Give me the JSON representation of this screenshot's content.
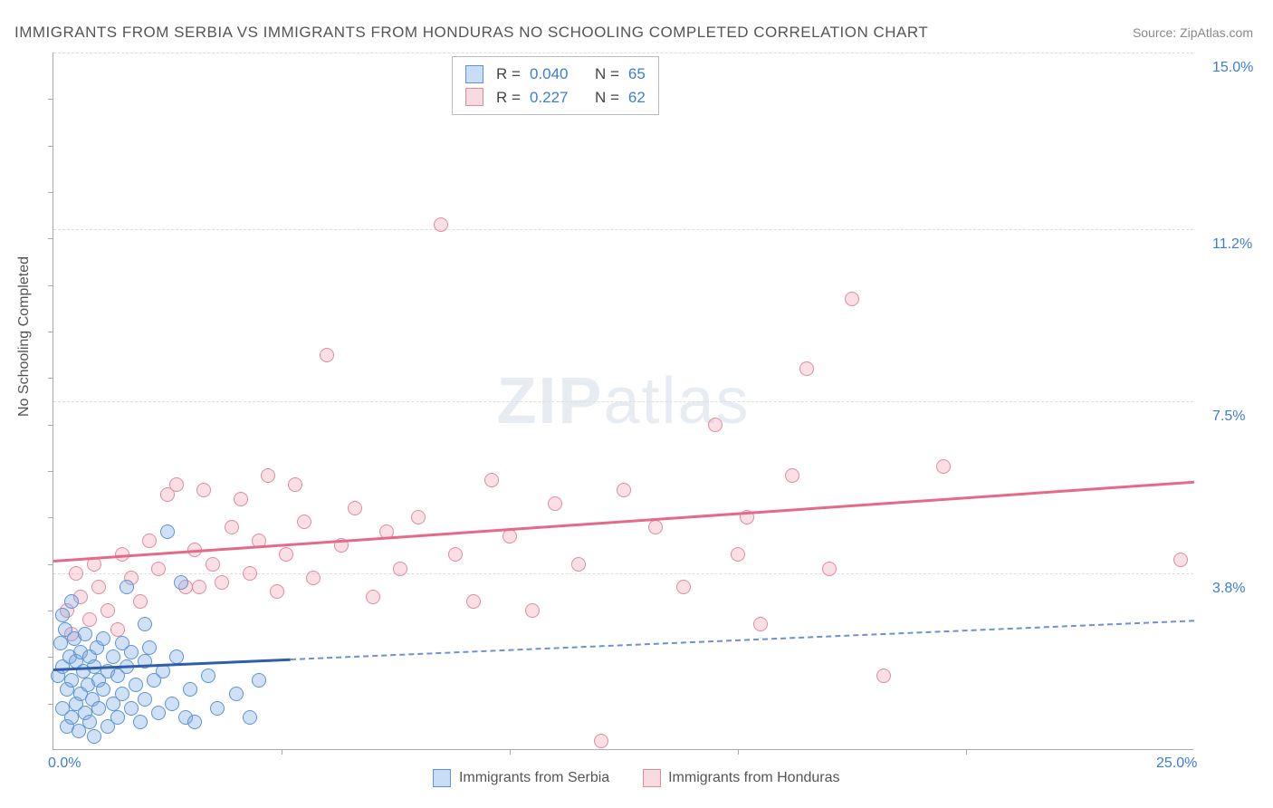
{
  "title": "IMMIGRANTS FROM SERBIA VS IMMIGRANTS FROM HONDURAS NO SCHOOLING COMPLETED CORRELATION CHART",
  "source": "Source: ZipAtlas.com",
  "y_axis_label": "No Schooling Completed",
  "watermark_bold": "ZIP",
  "watermark_thin": "atlas",
  "chart": {
    "type": "scatter",
    "xlim": [
      0,
      25
    ],
    "ylim": [
      0,
      15
    ],
    "x_tick_labels": {
      "0": "0.0%",
      "25": "25.0%"
    },
    "x_ticks_minor": [
      5,
      10,
      15,
      20
    ],
    "y_tick_labels": {
      "3.8": "3.8%",
      "7.5": "7.5%",
      "11.2": "11.2%",
      "15": "15.0%"
    },
    "y_ticks_minor_left": [
      1,
      2,
      3,
      4,
      5,
      6,
      7,
      8,
      9,
      10,
      11,
      12,
      13,
      14
    ],
    "grid_color": "#dddddd",
    "background_color": "#ffffff",
    "axis_label_color": "#555555",
    "tick_label_color": "#3b7dd8"
  },
  "legend_stats": [
    {
      "swatch": "blue",
      "r_label": "R =",
      "r_val": "0.040",
      "n_label": "N =",
      "n_val": "65"
    },
    {
      "swatch": "pink",
      "r_label": "R =",
      "r_val": "0.227",
      "n_label": "N =",
      "n_val": "62"
    }
  ],
  "bottom_legend": [
    {
      "swatch": "blue",
      "label": "Immigrants from Serbia"
    },
    {
      "swatch": "pink",
      "label": "Immigrants from Honduras"
    }
  ],
  "series": {
    "serbia": {
      "color_fill": "rgba(120,170,230,0.35)",
      "color_stroke": "#5a93d6",
      "trend_color": "#2e5fa8",
      "trend": {
        "x1": 0,
        "y1": 1.75,
        "x2_solid": 5.2,
        "x2_end": 25,
        "y2": 2.8
      },
      "points": [
        [
          0.1,
          1.6
        ],
        [
          0.15,
          2.3
        ],
        [
          0.2,
          0.9
        ],
        [
          0.2,
          1.8
        ],
        [
          0.25,
          2.6
        ],
        [
          0.3,
          0.5
        ],
        [
          0.3,
          1.3
        ],
        [
          0.35,
          2.0
        ],
        [
          0.4,
          0.7
        ],
        [
          0.4,
          1.5
        ],
        [
          0.45,
          2.4
        ],
        [
          0.5,
          1.0
        ],
        [
          0.5,
          1.9
        ],
        [
          0.55,
          0.4
        ],
        [
          0.6,
          1.2
        ],
        [
          0.6,
          2.1
        ],
        [
          0.65,
          1.7
        ],
        [
          0.7,
          0.8
        ],
        [
          0.7,
          2.5
        ],
        [
          0.75,
          1.4
        ],
        [
          0.8,
          0.6
        ],
        [
          0.8,
          2.0
        ],
        [
          0.85,
          1.1
        ],
        [
          0.9,
          1.8
        ],
        [
          0.9,
          0.3
        ],
        [
          0.95,
          2.2
        ],
        [
          1.0,
          1.5
        ],
        [
          1.0,
          0.9
        ],
        [
          1.1,
          1.3
        ],
        [
          1.1,
          2.4
        ],
        [
          1.2,
          1.7
        ],
        [
          1.2,
          0.5
        ],
        [
          1.3,
          2.0
        ],
        [
          1.3,
          1.0
        ],
        [
          1.4,
          1.6
        ],
        [
          1.4,
          0.7
        ],
        [
          1.5,
          2.3
        ],
        [
          1.5,
          1.2
        ],
        [
          1.6,
          1.8
        ],
        [
          1.7,
          0.9
        ],
        [
          1.7,
          2.1
        ],
        [
          1.8,
          1.4
        ],
        [
          1.9,
          0.6
        ],
        [
          2.0,
          1.9
        ],
        [
          2.0,
          1.1
        ],
        [
          2.1,
          2.2
        ],
        [
          2.2,
          1.5
        ],
        [
          2.3,
          0.8
        ],
        [
          2.4,
          1.7
        ],
        [
          2.5,
          4.7
        ],
        [
          2.6,
          1.0
        ],
        [
          2.7,
          2.0
        ],
        [
          2.8,
          3.6
        ],
        [
          2.9,
          0.7
        ],
        [
          3.0,
          1.3
        ],
        [
          3.1,
          0.6
        ],
        [
          3.4,
          1.6
        ],
        [
          3.6,
          0.9
        ],
        [
          4.0,
          1.2
        ],
        [
          4.3,
          0.7
        ],
        [
          4.5,
          1.5
        ],
        [
          1.6,
          3.5
        ],
        [
          0.4,
          3.2
        ],
        [
          0.2,
          2.9
        ],
        [
          2.0,
          2.7
        ]
      ]
    },
    "honduras": {
      "color_fill": "rgba(240,150,170,0.30)",
      "color_stroke": "#e08aa0",
      "trend_color": "#e56a8a",
      "trend": {
        "x1": 0,
        "y1": 4.1,
        "x2": 25,
        "y2": 5.8
      },
      "points": [
        [
          0.3,
          3.0
        ],
        [
          0.4,
          2.5
        ],
        [
          0.5,
          3.8
        ],
        [
          0.6,
          3.3
        ],
        [
          0.8,
          2.8
        ],
        [
          0.9,
          4.0
        ],
        [
          1.0,
          3.5
        ],
        [
          1.2,
          3.0
        ],
        [
          1.4,
          2.6
        ],
        [
          1.5,
          4.2
        ],
        [
          1.7,
          3.7
        ],
        [
          1.9,
          3.2
        ],
        [
          2.1,
          4.5
        ],
        [
          2.3,
          3.9
        ],
        [
          2.5,
          5.5
        ],
        [
          2.7,
          5.7
        ],
        [
          2.9,
          3.5
        ],
        [
          3.1,
          4.3
        ],
        [
          3.3,
          5.6
        ],
        [
          3.5,
          4.0
        ],
        [
          3.7,
          3.6
        ],
        [
          3.9,
          4.8
        ],
        [
          4.1,
          5.4
        ],
        [
          4.3,
          3.8
        ],
        [
          4.5,
          4.5
        ],
        [
          4.7,
          5.9
        ],
        [
          4.9,
          3.4
        ],
        [
          5.1,
          4.2
        ],
        [
          5.3,
          5.7
        ],
        [
          5.5,
          4.9
        ],
        [
          5.7,
          3.7
        ],
        [
          6.0,
          8.5
        ],
        [
          6.3,
          4.4
        ],
        [
          6.6,
          5.2
        ],
        [
          7.0,
          3.3
        ],
        [
          7.3,
          4.7
        ],
        [
          7.6,
          3.9
        ],
        [
          8.5,
          11.3
        ],
        [
          8.0,
          5.0
        ],
        [
          8.8,
          4.2
        ],
        [
          9.2,
          3.2
        ],
        [
          9.6,
          5.8
        ],
        [
          10.0,
          4.6
        ],
        [
          10.5,
          3.0
        ],
        [
          11.0,
          5.3
        ],
        [
          11.5,
          4.0
        ],
        [
          12.0,
          0.2
        ],
        [
          12.5,
          5.6
        ],
        [
          13.2,
          4.8
        ],
        [
          13.8,
          3.5
        ],
        [
          14.5,
          7.0
        ],
        [
          15.0,
          4.2
        ],
        [
          15.2,
          5.0
        ],
        [
          15.5,
          2.7
        ],
        [
          16.2,
          5.9
        ],
        [
          16.5,
          8.2
        ],
        [
          17.0,
          3.9
        ],
        [
          17.5,
          9.7
        ],
        [
          18.2,
          1.6
        ],
        [
          19.5,
          6.1
        ],
        [
          24.7,
          4.1
        ],
        [
          3.2,
          3.5
        ]
      ]
    }
  }
}
